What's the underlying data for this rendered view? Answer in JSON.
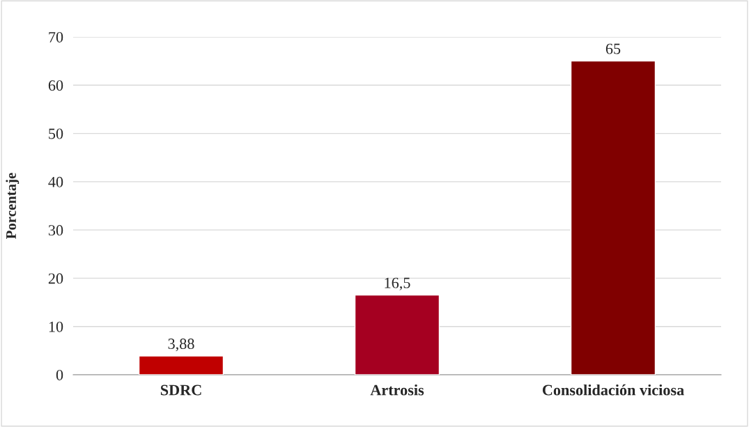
{
  "chart_data": {
    "type": "bar",
    "ylabel": "Porcentaje",
    "categories": [
      "SDRC",
      "Artrosis",
      "Consolidación viciosa"
    ],
    "values": [
      3.88,
      16.5,
      65
    ],
    "colors": [
      "#c00000",
      "#a50021",
      "#800000"
    ],
    "value_labels": [
      "3,88",
      "16,5",
      "65"
    ],
    "ylim": [
      0,
      70
    ],
    "yticks": [
      0,
      10,
      20,
      30,
      40,
      50,
      60,
      70
    ],
    "grid": "y",
    "legend": false
  }
}
